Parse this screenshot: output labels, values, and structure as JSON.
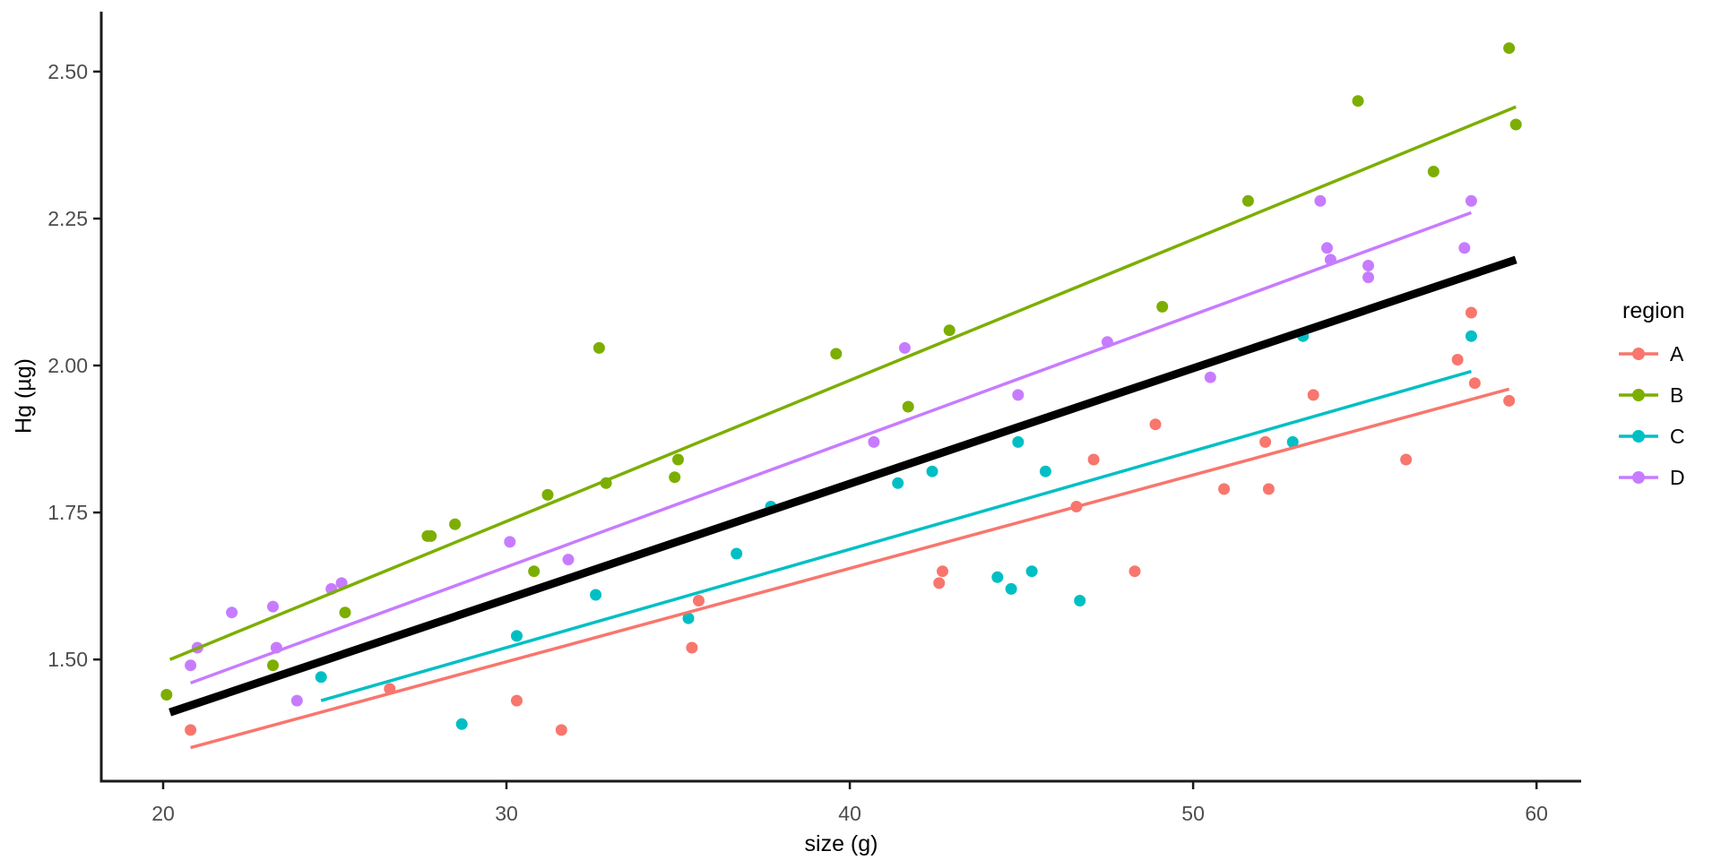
{
  "chart_data": {
    "type": "scatter",
    "title": "",
    "xlabel": "size (g)",
    "ylabel": "Hg (µg)",
    "xlim": [
      18.2,
      61.3
    ],
    "ylim": [
      1.293,
      2.602
    ],
    "grid": "off",
    "x_tick_values": [
      20,
      30,
      40,
      50,
      60
    ],
    "x_tick_labels": [
      "20",
      "30",
      "40",
      "50",
      "60"
    ],
    "y_tick_values": [
      1.5,
      1.75,
      2.0,
      2.25,
      2.5
    ],
    "y_tick_labels": [
      "1.50",
      "1.75",
      "2.00",
      "2.25",
      "2.50"
    ],
    "legend": {
      "title": "region",
      "position": "right",
      "entries": [
        {
          "label": "A",
          "color": "#F8766D"
        },
        {
          "label": "B",
          "color": "#7CAE00"
        },
        {
          "label": "C",
          "color": "#00BFC4"
        },
        {
          "label": "D",
          "color": "#C77CFF"
        }
      ]
    },
    "series": [
      {
        "name": "A",
        "color": "#F8766D",
        "points": [
          [
            20.8,
            1.38
          ],
          [
            26.6,
            1.45
          ],
          [
            30.3,
            1.43
          ],
          [
            31.6,
            1.38
          ],
          [
            35.4,
            1.52
          ],
          [
            35.6,
            1.6
          ],
          [
            42.6,
            1.63
          ],
          [
            42.7,
            1.65
          ],
          [
            46.6,
            1.76
          ],
          [
            47.1,
            1.84
          ],
          [
            48.3,
            1.65
          ],
          [
            48.9,
            1.9
          ],
          [
            50.9,
            1.79
          ],
          [
            52.1,
            1.87
          ],
          [
            52.2,
            1.79
          ],
          [
            53.5,
            1.95
          ],
          [
            56.2,
            1.84
          ],
          [
            57.7,
            2.01
          ],
          [
            58.1,
            2.09
          ],
          [
            58.2,
            1.97
          ],
          [
            59.2,
            1.94
          ]
        ],
        "trend": [
          [
            20.8,
            1.35
          ],
          [
            59.2,
            1.96
          ]
        ]
      },
      {
        "name": "B",
        "color": "#7CAE00",
        "points": [
          [
            20.1,
            1.44
          ],
          [
            23.2,
            1.49
          ],
          [
            25.3,
            1.58
          ],
          [
            27.7,
            1.71
          ],
          [
            27.8,
            1.71
          ],
          [
            28.5,
            1.73
          ],
          [
            30.8,
            1.65
          ],
          [
            31.2,
            1.78
          ],
          [
            32.7,
            2.03
          ],
          [
            32.9,
            1.8
          ],
          [
            34.9,
            1.81
          ],
          [
            35.0,
            1.84
          ],
          [
            39.6,
            2.02
          ],
          [
            41.7,
            1.93
          ],
          [
            42.9,
            2.06
          ],
          [
            49.1,
            2.1
          ],
          [
            51.6,
            2.28
          ],
          [
            54.8,
            2.45
          ],
          [
            57.0,
            2.33
          ],
          [
            59.2,
            2.54
          ],
          [
            59.4,
            2.41
          ]
        ],
        "trend": [
          [
            20.2,
            1.5
          ],
          [
            59.4,
            2.44
          ]
        ]
      },
      {
        "name": "C",
        "color": "#00BFC4",
        "points": [
          [
            24.6,
            1.47
          ],
          [
            28.7,
            1.39
          ],
          [
            30.3,
            1.54
          ],
          [
            32.6,
            1.61
          ],
          [
            35.3,
            1.57
          ],
          [
            36.7,
            1.68
          ],
          [
            37.7,
            1.76
          ],
          [
            41.4,
            1.8
          ],
          [
            42.4,
            1.82
          ],
          [
            44.3,
            1.64
          ],
          [
            44.7,
            1.62
          ],
          [
            44.9,
            1.87
          ],
          [
            45.3,
            1.65
          ],
          [
            45.7,
            1.82
          ],
          [
            46.7,
            1.6
          ],
          [
            52.9,
            1.87
          ],
          [
            53.2,
            2.05
          ],
          [
            58.1,
            2.05
          ]
        ],
        "trend": [
          [
            24.6,
            1.43
          ],
          [
            58.1,
            1.99
          ]
        ]
      },
      {
        "name": "D",
        "color": "#C77CFF",
        "points": [
          [
            20.8,
            1.49
          ],
          [
            21.0,
            1.52
          ],
          [
            22.0,
            1.58
          ],
          [
            23.2,
            1.59
          ],
          [
            23.3,
            1.52
          ],
          [
            23.9,
            1.43
          ],
          [
            24.9,
            1.62
          ],
          [
            25.2,
            1.63
          ],
          [
            30.1,
            1.7
          ],
          [
            31.8,
            1.67
          ],
          [
            40.7,
            1.87
          ],
          [
            41.6,
            2.03
          ],
          [
            44.9,
            1.95
          ],
          [
            47.5,
            2.04
          ],
          [
            50.5,
            1.98
          ],
          [
            53.7,
            2.28
          ],
          [
            53.9,
            2.2
          ],
          [
            54.0,
            2.18
          ],
          [
            55.1,
            2.17
          ],
          [
            55.1,
            2.15
          ],
          [
            57.9,
            2.2
          ],
          [
            58.1,
            2.28
          ]
        ],
        "trend": [
          [
            20.8,
            1.46
          ],
          [
            58.1,
            2.26
          ]
        ]
      }
    ],
    "overall_trend": {
      "name": "overall",
      "color": "#000000",
      "width": 9,
      "points": [
        [
          20.2,
          1.41
        ],
        [
          59.4,
          2.18
        ]
      ]
    },
    "style": {
      "point_radius": 6.5,
      "trend_width": 3.5,
      "axis_color": "#1A1A1A",
      "tick_text_color": "#4D4D4D",
      "tick_font_size": 23
    }
  }
}
